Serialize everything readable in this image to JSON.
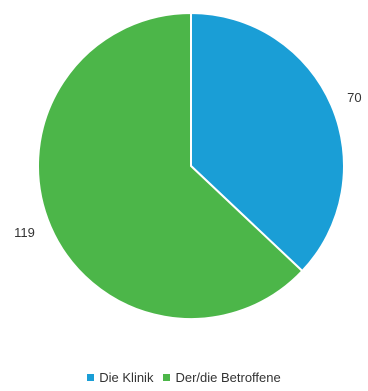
{
  "chart_data": {
    "type": "pie",
    "categories": [
      "Die Klinik",
      "Der/die Betroffene"
    ],
    "values": [
      70,
      119
    ],
    "colors": [
      "#1a9ed6",
      "#4cb649"
    ],
    "data_labels": [
      "70",
      "119"
    ],
    "legend_position": "bottom"
  }
}
